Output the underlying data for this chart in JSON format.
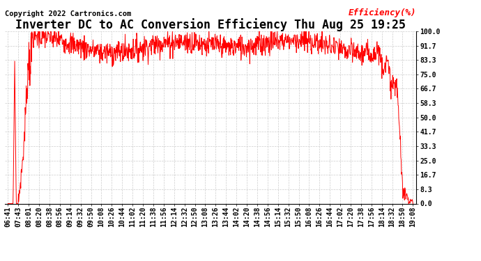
{
  "title": "Inverter DC to AC Conversion Efficiency Thu Aug 25 19:25",
  "copyright": "Copyright 2022 Cartronics.com",
  "ylabel": "Efficiency(%)",
  "background_color": "#ffffff",
  "line_color": "#ff0000",
  "grid_color": "#cccccc",
  "title_color": "#000000",
  "copyright_color": "#000000",
  "ylabel_color": "#ff0000",
  "ytick_labels": [
    "100.0",
    "91.7",
    "83.3",
    "75.0",
    "66.7",
    "58.3",
    "50.0",
    "41.7",
    "33.3",
    "25.0",
    "16.7",
    "8.3",
    "0.0"
  ],
  "ytick_values": [
    100.0,
    91.7,
    83.3,
    75.0,
    66.7,
    58.3,
    50.0,
    41.7,
    33.3,
    25.0,
    16.7,
    8.3,
    0.0
  ],
  "ylim": [
    0,
    100
  ],
  "xtick_labels": [
    "06:41",
    "07:43",
    "08:01",
    "08:20",
    "08:38",
    "08:56",
    "09:14",
    "09:32",
    "09:50",
    "10:08",
    "10:26",
    "10:44",
    "11:02",
    "11:20",
    "11:38",
    "11:56",
    "12:14",
    "12:32",
    "12:50",
    "13:08",
    "13:26",
    "13:44",
    "14:02",
    "14:20",
    "14:38",
    "14:56",
    "15:14",
    "15:32",
    "15:50",
    "16:08",
    "16:26",
    "16:44",
    "17:02",
    "17:20",
    "17:38",
    "17:56",
    "18:14",
    "18:32",
    "18:50",
    "19:08"
  ],
  "title_fontsize": 12,
  "copyright_fontsize": 7.5,
  "ylabel_fontsize": 9,
  "tick_fontsize": 7,
  "tick_color": "#000000"
}
